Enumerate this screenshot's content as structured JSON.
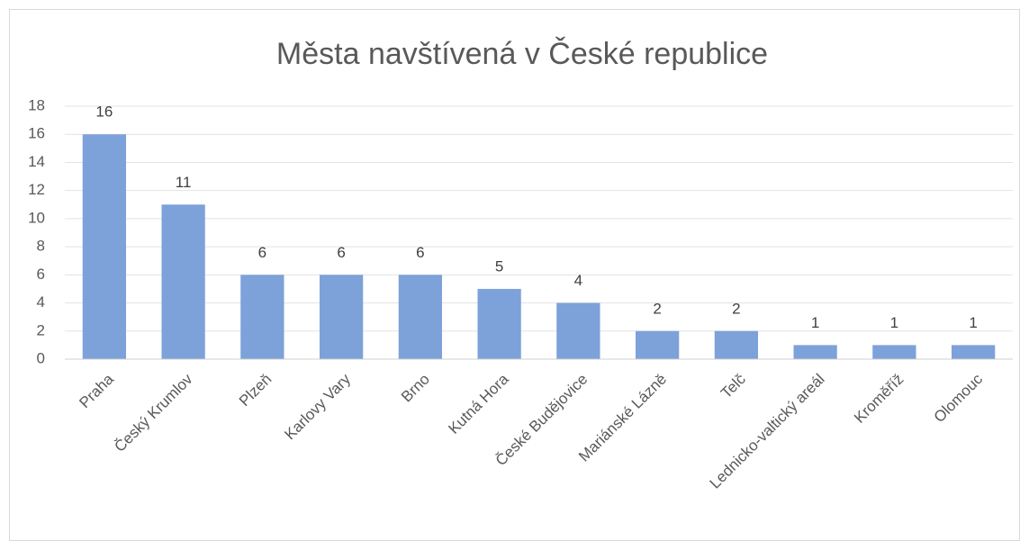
{
  "chart_data": {
    "type": "bar",
    "title": "Města navštívená v České republice",
    "categories": [
      "Praha",
      "Český Krumlov",
      "Plzeň",
      "Karlovy Vary",
      "Brno",
      "Kutná Hora",
      "České Budějovice",
      "Mariánské Lázně",
      "Telč",
      "Lednicko-valtický areál",
      "Kroměříž",
      "Olomouc"
    ],
    "values": [
      16,
      11,
      6,
      6,
      6,
      5,
      4,
      2,
      2,
      1,
      1,
      1
    ],
    "color": "#7da1d9",
    "ylim": [
      0,
      18
    ],
    "yticks": [
      0,
      2,
      4,
      6,
      8,
      10,
      12,
      14,
      16,
      18
    ],
    "grid": true
  }
}
